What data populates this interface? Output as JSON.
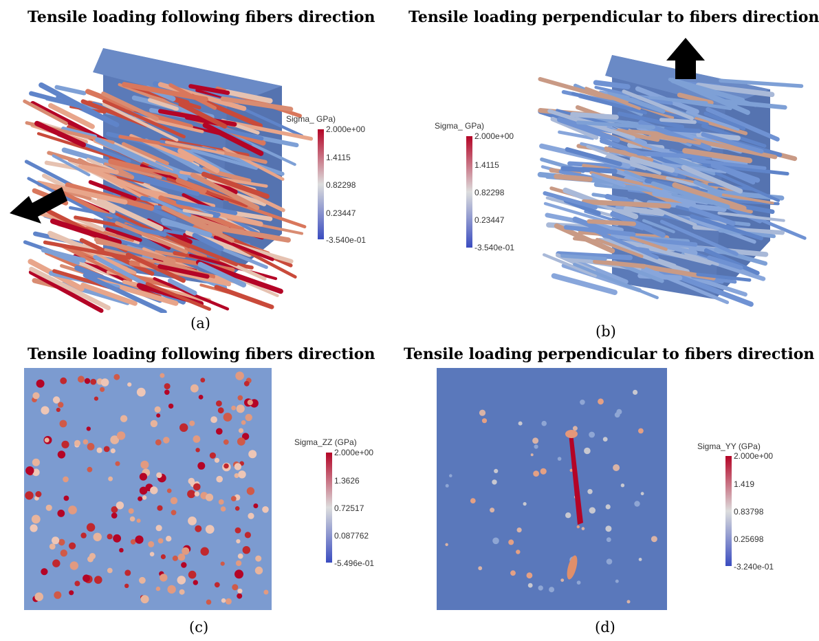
{
  "colors": {
    "low": "#3a4cc0",
    "mid": "#dcdddd",
    "high": "#b40426",
    "matrix": "#5b7fbf"
  },
  "panels": [
    {
      "id": "a",
      "title": "Tensile loading following fibers direction",
      "caption": "(a)",
      "colorbar": {
        "title": "Sigma_ GPa)",
        "ticks": [
          "2.000e+00",
          "1.4115",
          "0.82298",
          "0.23447",
          "-3.540e-01"
        ]
      }
    },
    {
      "id": "b",
      "title": "Tensile loading perpendicular to fibers direction",
      "caption": "(b)",
      "colorbar": {
        "title": "Sigma_ GPa)",
        "ticks": [
          "2.000e+00",
          "1.4115",
          "0.82298",
          "0.23447",
          "-3.540e-01"
        ]
      }
    },
    {
      "id": "c",
      "title": "Tensile loading following fibers direction",
      "caption": "(c)",
      "colorbar": {
        "title": "Sigma_ZZ (GPa)",
        "ticks": [
          "2.000e+00",
          "1.3626",
          "0.72517",
          "0.087762",
          "-5.496e-01"
        ]
      }
    },
    {
      "id": "d",
      "title": "Tensile loading perpendicular to fibers direction",
      "caption": "(d)",
      "colorbar": {
        "title": "Sigma_YY (GPa)",
        "ticks": [
          "2.000e+00",
          "1.419",
          "0.83798",
          "0.25698",
          "-3.240e-01"
        ]
      }
    }
  ]
}
